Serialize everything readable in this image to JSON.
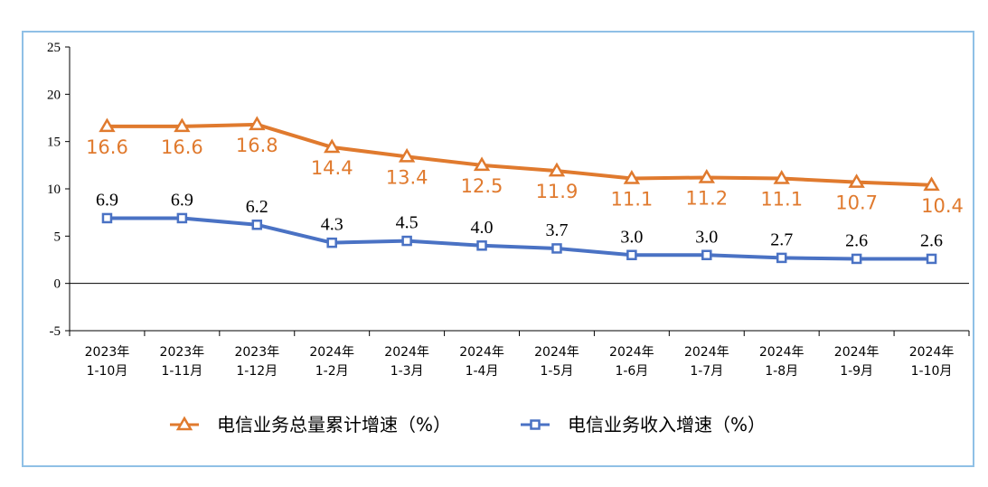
{
  "chart_data": {
    "type": "line",
    "categories": [
      [
        "2023年",
        "1-10月"
      ],
      [
        "2023年",
        "1-11月"
      ],
      [
        "2023年",
        "1-12月"
      ],
      [
        "2024年",
        "1-2月"
      ],
      [
        "2024年",
        "1-3月"
      ],
      [
        "2024年",
        "1-4月"
      ],
      [
        "2024年",
        "1-5月"
      ],
      [
        "2024年",
        "1-6月"
      ],
      [
        "2024年",
        "1-7月"
      ],
      [
        "2024年",
        "1-8月"
      ],
      [
        "2024年",
        "1-9月"
      ],
      [
        "2024年",
        "1-10月"
      ]
    ],
    "series": [
      {
        "name": "电信业务总量累计增速（%）",
        "color": "#e07a2e",
        "marker": "triangle",
        "values": [
          16.6,
          16.6,
          16.8,
          14.4,
          13.4,
          12.5,
          11.9,
          11.1,
          11.2,
          11.1,
          10.7,
          10.4
        ],
        "labels": [
          "16.6",
          "16.6",
          "16.8",
          "14.4",
          "13.4",
          "12.5",
          "11.9",
          "11.1",
          "11.2",
          "11.1",
          "10.7",
          "10.4"
        ]
      },
      {
        "name": "电信业务收入增速（%）",
        "color": "#4a72c4",
        "marker": "square",
        "values": [
          6.9,
          6.9,
          6.2,
          4.3,
          4.5,
          4.0,
          3.7,
          3.0,
          3.0,
          2.7,
          2.6,
          2.6
        ],
        "labels": [
          "6.9",
          "6.9",
          "6.2",
          "4.3",
          "4.5",
          "4.0",
          "3.7",
          "3.0",
          "3.0",
          "2.7",
          "2.6",
          "2.6"
        ]
      }
    ],
    "yticks": [
      "25",
      "20",
      "15",
      "10",
      "5",
      "0",
      "-5"
    ],
    "ylim": [
      -5,
      25
    ],
    "legend_position": "bottom",
    "grid": false
  }
}
